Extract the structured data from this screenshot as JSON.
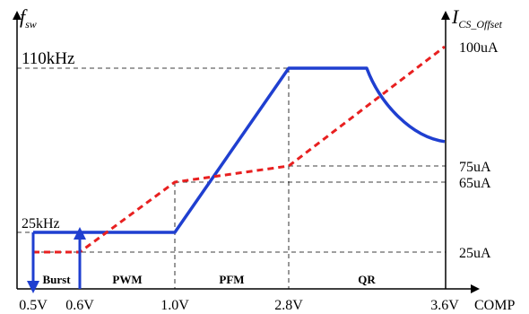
{
  "chart_data": {
    "type": "line",
    "xlabel": "COMP",
    "left_axis": {
      "label_main": "f",
      "label_sub": "sw"
    },
    "right_axis": {
      "label_main": "I",
      "label_sub": "CS_Offset"
    },
    "x_ticks": [
      "0.5V",
      "0.6V",
      "1.0V",
      "2.8V",
      "3.6V"
    ],
    "x_tick_values": [
      0.5,
      0.6,
      1.0,
      2.8,
      3.6
    ],
    "left_ticks": [
      {
        "label": "110kHz",
        "value": 110
      },
      {
        "label": "25kHz",
        "value": 25
      }
    ],
    "right_ticks": [
      {
        "label": "100uA",
        "value": 100
      },
      {
        "label": "75uA",
        "value": 75
      },
      {
        "label": "65uA",
        "value": 65
      },
      {
        "label": "25uA",
        "value": 25
      }
    ],
    "regions": [
      {
        "label": "Burst",
        "center": 0.55
      },
      {
        "label": "PWM",
        "center": 0.8
      },
      {
        "label": "PFM",
        "center": 1.9
      },
      {
        "label": "QR",
        "center": 3.2
      }
    ],
    "series": [
      {
        "axis": "left",
        "color": "#1f3fd0",
        "style": "solid",
        "points": [
          [
            0.5,
            25
          ],
          [
            1.0,
            25
          ],
          [
            2.8,
            110
          ],
          [
            3.2,
            110
          ],
          [
            3.6,
            72
          ]
        ]
      },
      {
        "axis": "right",
        "color": "#e82020",
        "style": "dashed",
        "points": [
          [
            0.5,
            25
          ],
          [
            0.6,
            25
          ],
          [
            1.0,
            65
          ],
          [
            2.8,
            75
          ],
          [
            3.6,
            100
          ]
        ]
      }
    ],
    "burst_arrows": [
      {
        "x": 0.5,
        "direction": "down"
      },
      {
        "x": 0.6,
        "direction": "up"
      }
    ],
    "grid": false
  }
}
